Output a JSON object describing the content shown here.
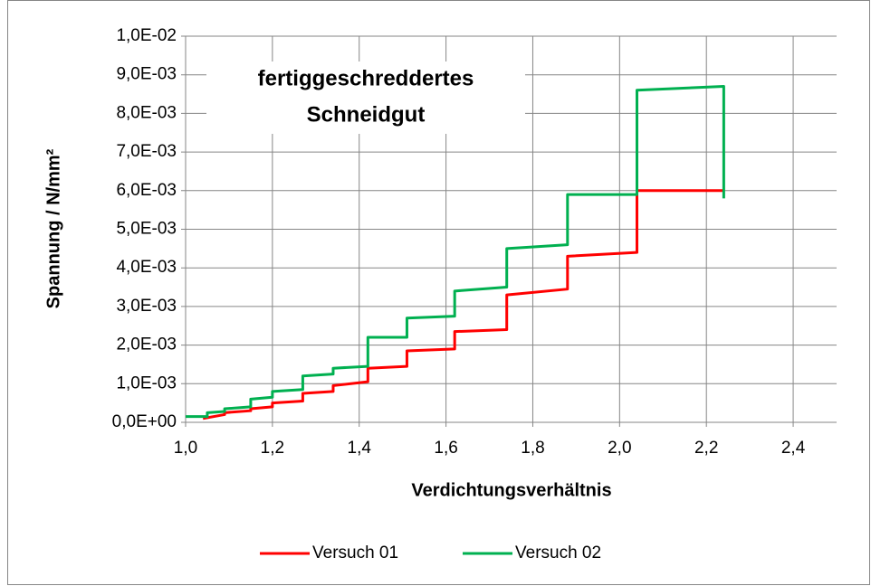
{
  "chart_data": {
    "type": "line",
    "annotation": [
      "fertiggeschreddertes",
      "Schneidgut"
    ],
    "xlabel": "Verdichtungsverhältnis",
    "ylabel": "Spannung / N/mm²",
    "xlim": [
      1.0,
      2.5
    ],
    "xticks": [
      {
        "value": 1.0,
        "label": "1,0"
      },
      {
        "value": 1.2,
        "label": "1,2"
      },
      {
        "value": 1.4,
        "label": "1,4"
      },
      {
        "value": 1.6,
        "label": "1,6"
      },
      {
        "value": 1.8,
        "label": "1,8"
      },
      {
        "value": 2.0,
        "label": "2,0"
      },
      {
        "value": 2.2,
        "label": "2,2"
      },
      {
        "value": 2.4,
        "label": "2,4"
      }
    ],
    "ylim": [
      0,
      0.01
    ],
    "yticks": [
      {
        "value": 0,
        "label": "0,0E+00"
      },
      {
        "value": 0.001,
        "label": "1,0E-03"
      },
      {
        "value": 0.002,
        "label": "2,0E-03"
      },
      {
        "value": 0.003,
        "label": "3,0E-03"
      },
      {
        "value": 0.004,
        "label": "4,0E-03"
      },
      {
        "value": 0.005,
        "label": "5,0E-03"
      },
      {
        "value": 0.006,
        "label": "6,0E-03"
      },
      {
        "value": 0.007,
        "label": "7,0E-03"
      },
      {
        "value": 0.008,
        "label": "8,0E-03"
      },
      {
        "value": 0.009,
        "label": "9,0E-03"
      },
      {
        "value": 0.01,
        "label": "1,0E-02"
      }
    ],
    "grid": true,
    "legend": "bottom",
    "series": [
      {
        "name": "Versuch 01",
        "color": "#ff0000",
        "x": [
          1.04,
          1.09,
          1.09,
          1.15,
          1.15,
          1.2,
          1.2,
          1.27,
          1.27,
          1.34,
          1.34,
          1.42,
          1.42,
          1.51,
          1.51,
          1.62,
          1.62,
          1.74,
          1.74,
          1.88,
          1.88,
          2.04,
          2.04,
          2.24
        ],
        "values": [
          0.0001,
          0.0002,
          0.00025,
          0.0003,
          0.00035,
          0.0004,
          0.0005,
          0.00055,
          0.00075,
          0.0008,
          0.00095,
          0.00105,
          0.0014,
          0.00145,
          0.00185,
          0.0019,
          0.00235,
          0.0024,
          0.0033,
          0.00345,
          0.0043,
          0.0044,
          0.006,
          0.006
        ]
      },
      {
        "name": "Versuch 02",
        "color": "#00b050",
        "x": [
          1.0,
          1.05,
          1.05,
          1.09,
          1.09,
          1.15,
          1.15,
          1.2,
          1.2,
          1.27,
          1.27,
          1.34,
          1.34,
          1.42,
          1.42,
          1.51,
          1.51,
          1.62,
          1.62,
          1.74,
          1.74,
          1.88,
          1.88,
          2.04,
          2.04,
          2.24,
          2.24
        ],
        "values": [
          0.00015,
          0.00015,
          0.00025,
          0.00028,
          0.00035,
          0.0004,
          0.0006,
          0.00065,
          0.0008,
          0.00085,
          0.0012,
          0.00125,
          0.0014,
          0.00145,
          0.0022,
          0.0022,
          0.0027,
          0.00275,
          0.0034,
          0.0035,
          0.0045,
          0.0046,
          0.0059,
          0.0059,
          0.0086,
          0.0087,
          0.0058
        ]
      }
    ]
  }
}
